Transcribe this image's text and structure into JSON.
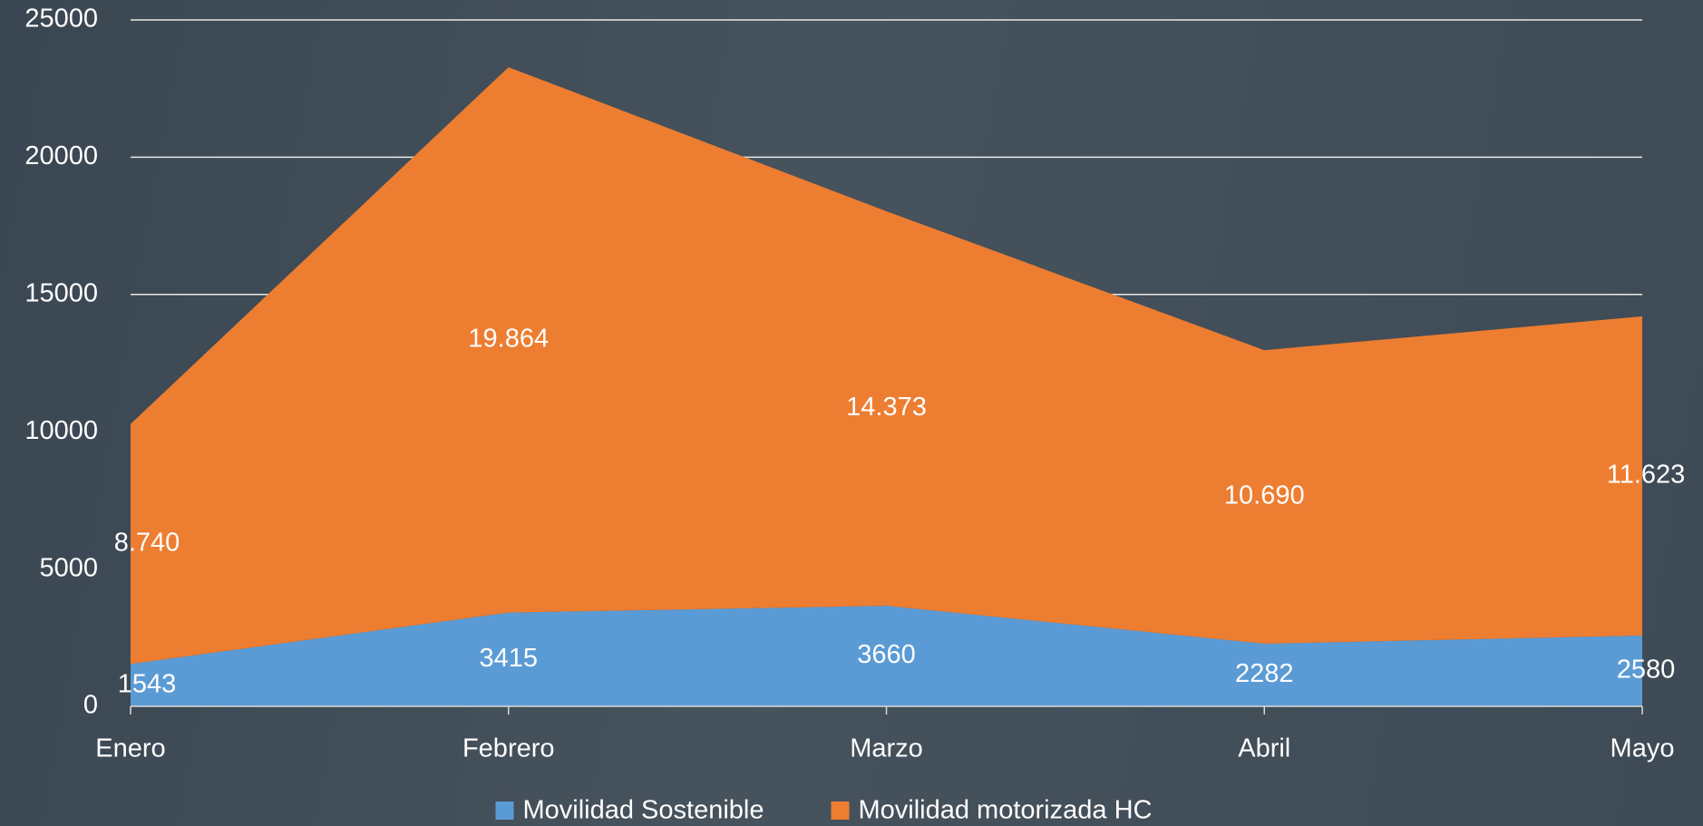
{
  "chart_data": {
    "type": "stacked_area",
    "categories": [
      "Enero",
      "Febrero",
      "Marzo",
      "Abril",
      "Mayo"
    ],
    "series": [
      {
        "name": "Movilidad Sostenible",
        "color": "#5b9bd5",
        "values": [
          1543,
          3415,
          3660,
          2282,
          2580
        ]
      },
      {
        "name": "Movilidad motorizada HC",
        "color": "#ed7d31",
        "values": [
          8740,
          19864,
          14373,
          10690,
          11623
        ],
        "value_labels": [
          "8.740",
          "19.864",
          "14.373",
          "10.690",
          "11.623"
        ]
      }
    ],
    "ylim": [
      0,
      25000
    ],
    "yticks": [
      0,
      5000,
      10000,
      15000,
      20000,
      25000
    ],
    "grid": true,
    "legend": "bottom"
  }
}
